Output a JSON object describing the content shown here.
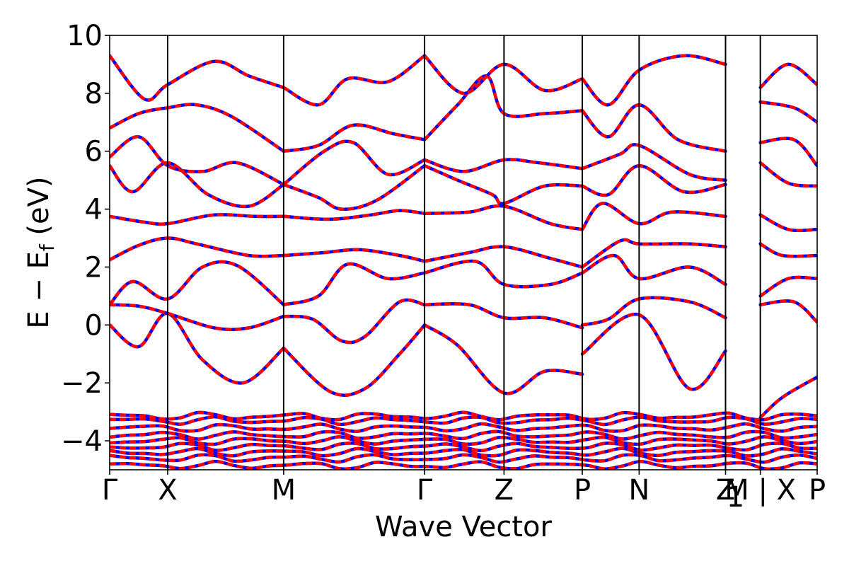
{
  "chart_data": {
    "type": "line",
    "title": "",
    "xlabel": "Wave Vector",
    "ylabel_parts": {
      "main": "E − E",
      "sub": "f",
      "unit": " (eV)"
    },
    "ylim": [
      -5,
      10
    ],
    "yticks": [
      -4,
      -2,
      0,
      2,
      4,
      6,
      8,
      10
    ],
    "ytick_labels": [
      "−4",
      "−2",
      "0",
      "2",
      "4",
      "6",
      "8",
      "10"
    ],
    "xlim": [
      0,
      12.2
    ],
    "kpoints": [
      {
        "label": "Γ",
        "x": 0.0
      },
      {
        "label": "X",
        "x": 1.0
      },
      {
        "label": "M",
        "x": 3.0
      },
      {
        "label": "Γ",
        "x": 5.43
      },
      {
        "label": "Z",
        "x": 6.8
      },
      {
        "label": "P",
        "x": 8.15
      },
      {
        "label": "N",
        "x": 9.13
      },
      {
        "label": "Z",
        "x": 10.62
      },
      {
        "label": "1",
        "x": 10.62,
        "subscript": true
      },
      {
        "label": "M | X",
        "x": 11.22
      },
      {
        "label": "P",
        "x": 12.2
      }
    ],
    "grid": false,
    "legend": "none",
    "colors": {
      "series_a": "#ff0000",
      "series_b": "#0000ff"
    },
    "series": [
      {
        "x": [
          0,
          0.5,
          1.0,
          1.6,
          2.3,
          3.0
        ],
        "y": [
          0.0,
          -0.75,
          0.4,
          -1.2,
          -2.0,
          -0.8
        ]
      },
      {
        "x": [
          3.0,
          3.8,
          4.4,
          5.0,
          5.43
        ],
        "y": [
          -0.8,
          -2.3,
          -2.2,
          -1.0,
          0.0
        ]
      },
      {
        "x": [
          5.43,
          6.0,
          6.8,
          7.5,
          8.15
        ],
        "y": [
          0.0,
          -0.7,
          -2.35,
          -1.6,
          -1.7
        ]
      },
      {
        "x": [
          8.15,
          9.13,
          10.0,
          10.62
        ],
        "y": [
          -1.0,
          0.35,
          -2.2,
          -0.9
        ]
      },
      {
        "x": [
          11.22,
          11.6,
          12.2
        ],
        "y": [
          -3.2,
          -2.5,
          -1.8
        ]
      },
      {
        "x": [
          0,
          0.5,
          1.0,
          1.8,
          2.4,
          3.0
        ],
        "y": [
          0.7,
          0.65,
          0.4,
          -0.1,
          -0.1,
          0.3
        ]
      },
      {
        "x": [
          3.0,
          3.5,
          4.0,
          4.4,
          5.0,
          5.43
        ],
        "y": [
          0.3,
          0.2,
          -0.55,
          -0.4,
          0.8,
          0.7
        ]
      },
      {
        "x": [
          5.43,
          6.2,
          6.8,
          7.5,
          8.15
        ],
        "y": [
          0.7,
          0.7,
          0.25,
          0.25,
          -0.1
        ]
      },
      {
        "x": [
          8.15,
          8.6,
          9.13,
          10.0,
          10.62
        ],
        "y": [
          0.0,
          0.2,
          0.9,
          0.8,
          0.25
        ]
      },
      {
        "x": [
          11.22,
          11.8,
          12.2
        ],
        "y": [
          0.7,
          0.8,
          0.1
        ]
      },
      {
        "x": [
          0,
          0.4,
          1.0,
          1.6,
          2.2,
          3.0
        ],
        "y": [
          0.7,
          1.5,
          0.9,
          2.0,
          2.05,
          0.7
        ]
      },
      {
        "x": [
          3.0,
          3.6,
          4.1,
          4.8,
          5.43
        ],
        "y": [
          0.7,
          1.0,
          2.1,
          1.6,
          1.8
        ]
      },
      {
        "x": [
          5.43,
          6.3,
          6.8,
          7.6,
          8.15
        ],
        "y": [
          1.8,
          2.2,
          1.4,
          1.4,
          1.8
        ]
      },
      {
        "x": [
          8.15,
          8.7,
          9.13,
          10.0,
          10.62
        ],
        "y": [
          1.8,
          2.4,
          1.6,
          2.0,
          1.4
        ]
      },
      {
        "x": [
          11.22,
          11.7,
          12.2
        ],
        "y": [
          1.0,
          1.6,
          1.6
        ]
      },
      {
        "x": [
          0,
          0.5,
          1.0,
          1.5,
          2.4,
          3.0
        ],
        "y": [
          2.25,
          2.75,
          3.0,
          2.8,
          2.4,
          2.4
        ]
      },
      {
        "x": [
          3.0,
          3.7,
          4.3,
          5.0,
          5.43
        ],
        "y": [
          2.4,
          2.5,
          2.6,
          2.4,
          2.2
        ]
      },
      {
        "x": [
          5.43,
          6.2,
          6.8,
          7.6,
          8.15
        ],
        "y": [
          2.2,
          2.5,
          2.7,
          2.3,
          2.0
        ]
      },
      {
        "x": [
          8.15,
          8.8,
          9.13,
          10.0,
          10.62
        ],
        "y": [
          2.0,
          2.9,
          2.8,
          2.8,
          2.7
        ]
      },
      {
        "x": [
          11.22,
          11.6,
          12.2
        ],
        "y": [
          2.8,
          2.4,
          2.4
        ]
      },
      {
        "x": [
          0,
          0.6,
          1.0,
          1.8,
          2.5,
          3.0
        ],
        "y": [
          3.75,
          3.55,
          3.5,
          3.8,
          3.75,
          3.75
        ]
      },
      {
        "x": [
          3.0,
          3.8,
          4.5,
          5.0,
          5.43
        ],
        "y": [
          3.75,
          3.65,
          3.8,
          3.95,
          3.85
        ]
      },
      {
        "x": [
          5.43,
          6.2,
          6.8,
          7.6,
          8.15
        ],
        "y": [
          3.85,
          3.9,
          4.1,
          3.5,
          3.3
        ]
      },
      {
        "x": [
          8.15,
          8.5,
          9.13,
          9.7,
          10.62
        ],
        "y": [
          3.3,
          4.2,
          3.5,
          3.9,
          3.75
        ]
      },
      {
        "x": [
          11.22,
          11.7,
          12.2
        ],
        "y": [
          3.8,
          3.3,
          3.3
        ]
      },
      {
        "x": [
          0,
          0.4,
          1.0,
          1.7,
          2.4,
          3.0
        ],
        "y": [
          5.5,
          4.6,
          5.6,
          4.5,
          4.1,
          4.85
        ]
      },
      {
        "x": [
          3.0,
          3.6,
          4.0,
          4.6,
          5.43
        ],
        "y": [
          4.85,
          4.4,
          4.0,
          4.3,
          5.5
        ]
      },
      {
        "x": [
          5.43,
          6.0,
          6.6,
          6.8,
          7.5,
          8.15
        ],
        "y": [
          5.5,
          5.0,
          4.5,
          4.2,
          4.8,
          4.8
        ]
      },
      {
        "x": [
          8.15,
          8.6,
          9.13,
          9.9,
          10.62
        ],
        "y": [
          4.8,
          4.5,
          5.5,
          4.6,
          4.85
        ]
      },
      {
        "x": [
          11.22,
          11.7,
          12.2
        ],
        "y": [
          5.6,
          4.9,
          4.8
        ]
      },
      {
        "x": [
          0,
          0.5,
          1.0,
          1.6,
          2.2,
          3.0
        ],
        "y": [
          5.8,
          6.5,
          5.5,
          5.3,
          5.6,
          4.85
        ]
      },
      {
        "x": [
          3.0,
          3.7,
          4.2,
          4.8,
          5.43
        ],
        "y": [
          4.85,
          6.0,
          6.3,
          5.2,
          5.7
        ]
      },
      {
        "x": [
          5.43,
          6.1,
          6.8,
          7.4,
          8.15
        ],
        "y": [
          5.7,
          5.3,
          5.7,
          5.6,
          5.4
        ]
      },
      {
        "x": [
          8.15,
          8.8,
          9.13,
          10.0,
          10.62
        ],
        "y": [
          5.4,
          5.9,
          6.2,
          5.2,
          5.0
        ]
      },
      {
        "x": [
          11.22,
          11.8,
          12.2
        ],
        "y": [
          6.3,
          6.4,
          5.5
        ]
      },
      {
        "x": [
          0,
          0.5,
          1.0,
          1.5,
          2.1,
          3.0
        ],
        "y": [
          6.8,
          7.3,
          7.5,
          7.6,
          7.2,
          6.0
        ]
      },
      {
        "x": [
          3.0,
          3.6,
          4.2,
          4.9,
          5.43
        ],
        "y": [
          6.0,
          6.2,
          6.9,
          6.6,
          6.4
        ]
      },
      {
        "x": [
          5.43,
          6.0,
          6.5,
          6.8,
          7.5,
          8.15
        ],
        "y": [
          6.4,
          7.6,
          8.6,
          7.3,
          7.3,
          7.4
        ]
      },
      {
        "x": [
          8.15,
          8.6,
          9.13,
          9.8,
          10.62
        ],
        "y": [
          7.4,
          6.5,
          7.6,
          6.4,
          6.0
        ]
      },
      {
        "x": [
          11.22,
          11.8,
          12.2
        ],
        "y": [
          7.7,
          7.5,
          7.0
        ]
      },
      {
        "x": [
          0,
          0.6,
          1.0,
          1.8,
          2.4,
          3.0
        ],
        "y": [
          9.3,
          7.8,
          8.3,
          9.1,
          8.6,
          8.2
        ]
      },
      {
        "x": [
          3.0,
          3.6,
          4.1,
          4.8,
          5.43
        ],
        "y": [
          8.2,
          7.6,
          8.5,
          8.4,
          9.3
        ]
      },
      {
        "x": [
          5.43,
          6.1,
          6.8,
          7.5,
          8.15
        ],
        "y": [
          9.3,
          8.0,
          9.0,
          8.1,
          8.5
        ]
      },
      {
        "x": [
          8.15,
          8.6,
          9.13,
          9.9,
          10.62
        ],
        "y": [
          8.5,
          7.6,
          8.8,
          9.3,
          9.0
        ]
      },
      {
        "x": [
          11.22,
          11.7,
          12.2
        ],
        "y": [
          8.2,
          9.0,
          8.3
        ]
      }
    ],
    "core_bands": [
      -4.85,
      -4.6,
      -4.4,
      -4.2,
      -4.0,
      -3.8,
      -3.55,
      -3.3,
      -3.15
    ]
  }
}
